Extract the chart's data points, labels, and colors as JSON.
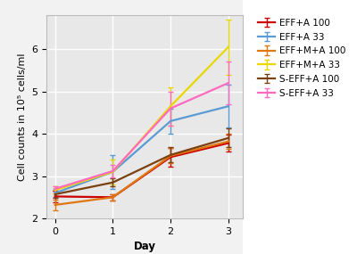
{
  "days": [
    0,
    1,
    2,
    3
  ],
  "series": [
    {
      "label": "EFF+A 100",
      "color": "#cc0000",
      "values": [
        2.52,
        2.5,
        3.45,
        3.78
      ],
      "errors": [
        0.13,
        0.08,
        0.22,
        0.2
      ]
    },
    {
      "label": "EFF+A 33",
      "color": "#5b9bd5",
      "values": [
        2.6,
        3.1,
        4.3,
        4.65
      ],
      "errors": [
        0.1,
        0.4,
        0.3,
        0.5
      ]
    },
    {
      "label": "EFF+M+A 100",
      "color": "#e07810",
      "values": [
        2.32,
        2.5,
        3.48,
        3.82
      ],
      "errors": [
        0.13,
        0.08,
        0.18,
        0.18
      ]
    },
    {
      "label": "EFF+M+A 33",
      "color": "#e8d800",
      "values": [
        2.67,
        3.1,
        4.65,
        6.05
      ],
      "errors": [
        0.08,
        0.3,
        0.45,
        0.65
      ]
    },
    {
      "label": "S-EFF+A 100",
      "color": "#7B4010",
      "values": [
        2.57,
        2.85,
        3.5,
        3.9
      ],
      "errors": [
        0.09,
        0.1,
        0.18,
        0.22
      ]
    },
    {
      "label": "S-EFF+A 33",
      "color": "#ff69c0",
      "values": [
        2.7,
        3.12,
        4.6,
        5.2
      ],
      "errors": [
        0.06,
        0.14,
        0.4,
        0.5
      ]
    }
  ],
  "xlabel": "Day",
  "ylabel": "Cell counts in 10⁵ cells/ml",
  "ylim": [
    2.0,
    6.8
  ],
  "xlim": [
    -0.15,
    3.25
  ],
  "yticks": [
    2,
    3,
    4,
    5,
    6
  ],
  "xticks": [
    0,
    1,
    2,
    3
  ],
  "plot_bg_color": "#e8e8e8",
  "fig_bg_color": "#f2f2f2",
  "legend_bg_color": "#ffffff",
  "grid_color": "#ffffff",
  "axis_fontsize": 8.5,
  "tick_fontsize": 8,
  "legend_fontsize": 7.5
}
